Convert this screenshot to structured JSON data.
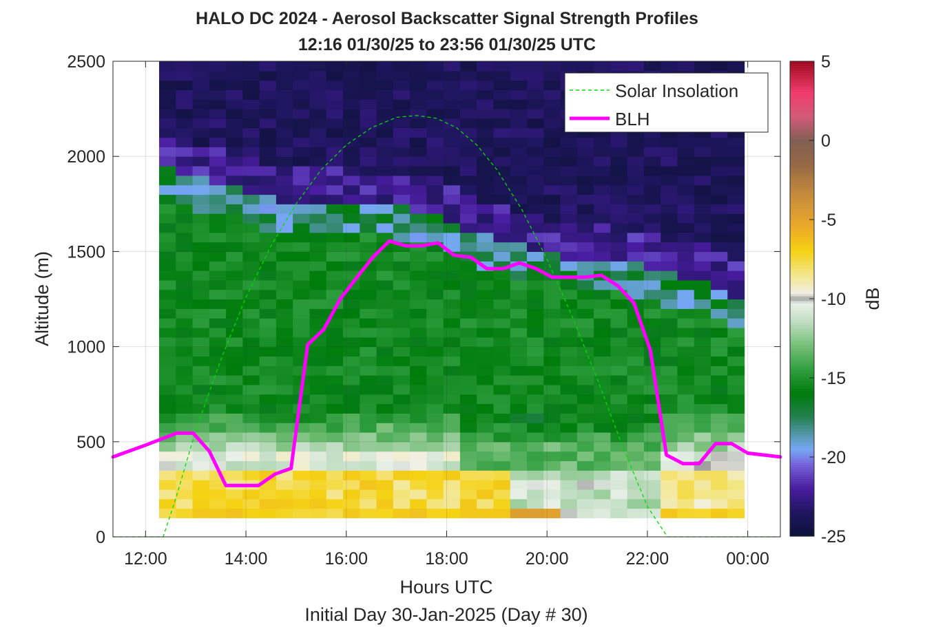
{
  "chart_data": {
    "type": "heatmap",
    "title": "HALO DC 2024 - Aerosol Backscatter Signal Strength Profiles",
    "subtitle": "12:16 01/30/25 to 23:56 01/30/25  UTC",
    "xlabel": "Hours UTC",
    "xlabel2": "Initial Day 30-Jan-2025 (Day # 30)",
    "ylabel": "Altitude (m)",
    "colorbar_label": "dB",
    "xlim": [
      11.35,
      24.65
    ],
    "ylim": [
      0,
      2500
    ],
    "clim": [
      -25,
      5
    ],
    "grid": true,
    "legend_placement": "top-right",
    "x_ticks": [
      {
        "value": 12,
        "label": "12:00"
      },
      {
        "value": 14,
        "label": "14:00"
      },
      {
        "value": 16,
        "label": "16:00"
      },
      {
        "value": 18,
        "label": "18:00"
      },
      {
        "value": 20,
        "label": "20:00"
      },
      {
        "value": 22,
        "label": "22:00"
      },
      {
        "value": 24,
        "label": "00:00"
      }
    ],
    "y_ticks": [
      {
        "value": 0,
        "label": "0"
      },
      {
        "value": 500,
        "label": "500"
      },
      {
        "value": 1000,
        "label": "1000"
      },
      {
        "value": 1500,
        "label": "1500"
      },
      {
        "value": 2000,
        "label": "2000"
      },
      {
        "value": 2500,
        "label": "2500"
      }
    ],
    "colorbar_ticks": [
      {
        "value": 5,
        "label": "5"
      },
      {
        "value": 0,
        "label": "0"
      },
      {
        "value": -5,
        "label": "-5"
      },
      {
        "value": -10,
        "label": "-10"
      },
      {
        "value": -15,
        "label": "-15"
      },
      {
        "value": -20,
        "label": "-20"
      },
      {
        "value": -25,
        "label": "-25"
      }
    ],
    "heatmap": {
      "x_start": 12.27,
      "x_end": 23.93,
      "y_start": 100,
      "y_end": 2500,
      "n_cols": 35,
      "n_rows": 48
    },
    "series": [
      {
        "name": "Solar Insolation",
        "style": "dashed",
        "color": "#00dd00",
        "x": [
          11.35,
          12.35,
          12.6,
          13.0,
          13.5,
          14.0,
          14.5,
          15.0,
          15.5,
          16.0,
          16.5,
          17.0,
          17.4,
          17.8,
          18.2,
          18.6,
          19.0,
          19.5,
          20.0,
          20.5,
          21.0,
          21.5,
          22.0,
          22.4,
          22.52,
          24.65
        ],
        "y": [
          0,
          0,
          200,
          560,
          930,
          1260,
          1530,
          1750,
          1930,
          2060,
          2150,
          2205,
          2215,
          2200,
          2150,
          2060,
          1930,
          1720,
          1460,
          1160,
          830,
          480,
          160,
          0,
          0,
          0
        ]
      },
      {
        "name": "BLH",
        "style": "solid",
        "color": "#ff00ff",
        "x": [
          11.35,
          11.98,
          12.62,
          12.95,
          13.27,
          13.6,
          13.93,
          14.25,
          14.58,
          14.9,
          15.23,
          15.55,
          15.88,
          16.2,
          16.53,
          16.86,
          17.18,
          17.5,
          17.83,
          18.15,
          18.48,
          18.8,
          19.13,
          19.45,
          19.78,
          20.1,
          20.43,
          20.76,
          21.08,
          21.41,
          21.73,
          22.06,
          22.38,
          22.71,
          23.03,
          23.36,
          23.68,
          24.0,
          24.65
        ],
        "y": [
          420,
          480,
          545,
          545,
          450,
          270,
          270,
          270,
          330,
          360,
          1010,
          1090,
          1250,
          1360,
          1470,
          1555,
          1530,
          1530,
          1545,
          1480,
          1470,
          1410,
          1410,
          1440,
          1410,
          1365,
          1365,
          1365,
          1375,
          1320,
          1230,
          980,
          430,
          385,
          385,
          490,
          490,
          440,
          420
        ]
      }
    ]
  }
}
